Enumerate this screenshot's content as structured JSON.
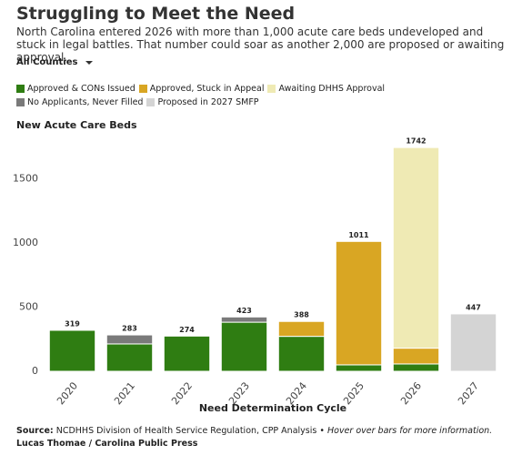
{
  "header": {
    "title": "Struggling to Meet the Need",
    "subtitle": "North Carolina entered 2026 with more than 1,000 acute care beds undeveloped and stuck in legal battles. That number could soar as another 2,000 are proposed or awaiting approval.",
    "dropdown": "All Counties"
  },
  "chart_data": {
    "type": "stacked_bar",
    "y_axis_title": "New Acute Care Beds",
    "x_axis_title": "Need Determination Cycle",
    "categories": [
      "2020",
      "2021",
      "2022",
      "2023",
      "2024",
      "2025",
      "2026",
      "2027"
    ],
    "series": [
      {
        "name": "Approved & CONs Issued",
        "color": "#2f7d12",
        "values": [
          319,
          213,
          274,
          382,
          272,
          50,
          57,
          null
        ]
      },
      {
        "name": "Approved, Stuck in Appeal",
        "color": "#d9a623",
        "values": [
          null,
          null,
          null,
          null,
          116,
          961,
          123,
          null
        ]
      },
      {
        "name": "Awaiting DHHS Approval",
        "color": "#efeab4",
        "values": [
          null,
          null,
          null,
          null,
          null,
          null,
          1562,
          null
        ]
      },
      {
        "name": "No Applicants, Never Filled",
        "color": "#7a7a7a",
        "values": [
          null,
          70,
          null,
          41,
          null,
          null,
          null,
          null
        ]
      },
      {
        "name": "Proposed in 2027 SMFP",
        "color": "#d4d4d4",
        "values": [
          null,
          null,
          null,
          null,
          null,
          null,
          null,
          447
        ]
      }
    ],
    "totals": [
      319,
      283,
      274,
      423,
      388,
      1011,
      1742,
      447
    ],
    "ylim": [
      0,
      1750
    ],
    "yticks": [
      0,
      500,
      1000,
      1500
    ],
    "grid": false
  },
  "footer": {
    "source_label": "Source:",
    "source_text": "NCDHHS Division of Health Service Regulation, CPP Analysis",
    "note": "• Hover over bars for more information.",
    "credit": "Lucas Thomae / Carolina Public Press"
  }
}
